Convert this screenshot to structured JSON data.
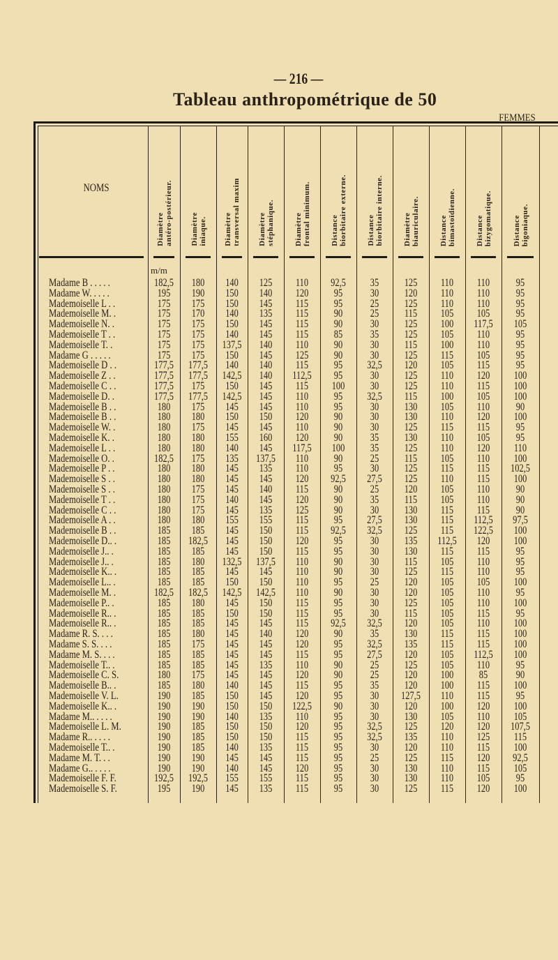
{
  "page_number": "— 216 —",
  "title": "Tableau anthropométrique de 50",
  "subtitle": "FEMMES",
  "table": {
    "name_header": "NOMS",
    "unit": "m/m",
    "columns": [
      [
        "Diamètre",
        "antéro-postérieur."
      ],
      [
        "Diamètre",
        "iniaque."
      ],
      [
        "Diamètre",
        "transversal maxim"
      ],
      [
        "Diamètre",
        "stéphanique."
      ],
      [
        "Diamètre",
        "frontal minimum."
      ],
      [
        "Distance",
        "biorbitaire externe."
      ],
      [
        "Distance",
        "biorbitaire interne."
      ],
      [
        "Diamètre",
        "biauriculaire."
      ],
      [
        "Distance",
        "bimastoïdienne."
      ],
      [
        "Distance",
        "bizygomatique."
      ],
      [
        "Distance",
        "bigoniaque."
      ]
    ],
    "rows": [
      [
        "Madame B . . . . .",
        "182,5",
        "180",
        "140",
        "125",
        "110",
        "92,5",
        "35",
        "125",
        "110",
        "110",
        "95"
      ],
      [
        "Madame W. . . . .",
        "195",
        "190",
        "150",
        "140",
        "120",
        "95",
        "30",
        "120",
        "110",
        "110",
        "95"
      ],
      [
        "Mademoiselle L . .",
        "175",
        "175",
        "150",
        "145",
        "115",
        "95",
        "25",
        "125",
        "110",
        "110",
        "95"
      ],
      [
        "Mademoiselle M. .",
        "175",
        "170",
        "140",
        "135",
        "115",
        "90",
        "25",
        "115",
        "105",
        "105",
        "95"
      ],
      [
        "Mademoiselle N. .",
        "175",
        "175",
        "150",
        "145",
        "115",
        "90",
        "30",
        "125",
        "100",
        "117,5",
        "105"
      ],
      [
        "Mademoiselle T . .",
        "175",
        "175",
        "140",
        "145",
        "115",
        "85",
        "35",
        "125",
        "105",
        "110",
        "95"
      ],
      [
        "Mademoiselle T. .",
        "175",
        "175",
        "137,5",
        "140",
        "110",
        "90",
        "30",
        "115",
        "100",
        "110",
        "95"
      ],
      [
        "Madame G . . . . .",
        "175",
        "175",
        "150",
        "145",
        "125",
        "90",
        "30",
        "125",
        "115",
        "105",
        "95"
      ],
      [
        "Mademoiselle D . .",
        "177,5",
        "177,5",
        "140",
        "140",
        "115",
        "95",
        "32,5",
        "120",
        "105",
        "115",
        "95"
      ],
      [
        "Mademoiselle Z . .",
        "177,5",
        "177,5",
        "142,5",
        "140",
        "112,5",
        "95",
        "30",
        "125",
        "110",
        "120",
        "100"
      ],
      [
        "Mademoiselle C . .",
        "177,5",
        "175",
        "150",
        "145",
        "115",
        "100",
        "30",
        "125",
        "110",
        "115",
        "100"
      ],
      [
        "Mademoiselle D. .",
        "177,5",
        "177,5",
        "142,5",
        "145",
        "110",
        "95",
        "32,5",
        "115",
        "100",
        "105",
        "100"
      ],
      [
        "Mademoiselle B . .",
        "180",
        "175",
        "145",
        "145",
        "110",
        "95",
        "30",
        "130",
        "105",
        "110",
        "90"
      ],
      [
        "Mademoiselle B . .",
        "180",
        "180",
        "150",
        "150",
        "120",
        "90",
        "30",
        "130",
        "110",
        "120",
        "100"
      ],
      [
        "Mademoiselle W. .",
        "180",
        "175",
        "145",
        "145",
        "110",
        "90",
        "30",
        "125",
        "115",
        "115",
        "95"
      ],
      [
        "Mademoiselle K. .",
        "180",
        "180",
        "155",
        "160",
        "120",
        "90",
        "35",
        "130",
        "110",
        "105",
        "95"
      ],
      [
        "Mademoiselle L . .",
        "180",
        "180",
        "140",
        "145",
        "117,5",
        "100",
        "35",
        "125",
        "110",
        "120",
        "110"
      ],
      [
        "Mademoiselle O. .",
        "182,5",
        "175",
        "135",
        "137,5",
        "110",
        "90",
        "25",
        "115",
        "105",
        "110",
        "100"
      ],
      [
        "Mademoiselle P . .",
        "180",
        "180",
        "145",
        "135",
        "110",
        "95",
        "30",
        "125",
        "115",
        "115",
        "102,5"
      ],
      [
        "Mademoiselle S . .",
        "180",
        "180",
        "145",
        "145",
        "120",
        "92,5",
        "27,5",
        "125",
        "110",
        "115",
        "100"
      ],
      [
        "Mademoiselle S . .",
        "180",
        "175",
        "145",
        "140",
        "115",
        "90",
        "25",
        "120",
        "105",
        "110",
        "90"
      ],
      [
        "Mademoiselle T . .",
        "180",
        "175",
        "140",
        "145",
        "120",
        "90",
        "35",
        "115",
        "105",
        "110",
        "90"
      ],
      [
        "Mademoiselle C . .",
        "180",
        "175",
        "145",
        "135",
        "125",
        "90",
        "30",
        "130",
        "115",
        "115",
        "90"
      ],
      [
        "Mademoiselle A . .",
        "180",
        "180",
        "155",
        "155",
        "115",
        "95",
        "27,5",
        "130",
        "115",
        "112,5",
        "97,5"
      ],
      [
        "Mademoiselle B . .",
        "185",
        "185",
        "145",
        "150",
        "115",
        "92,5",
        "32,5",
        "125",
        "115",
        "122,5",
        "100"
      ],
      [
        "Mademoiselle D.. .",
        "185",
        "182,5",
        "145",
        "150",
        "120",
        "95",
        "30",
        "135",
        "112,5",
        "120",
        "100"
      ],
      [
        "Mademoiselle J.. .",
        "185",
        "185",
        "145",
        "150",
        "115",
        "95",
        "30",
        "130",
        "115",
        "115",
        "95"
      ],
      [
        "Mademoiselle J.. .",
        "185",
        "180",
        "132,5",
        "137,5",
        "110",
        "90",
        "30",
        "115",
        "105",
        "110",
        "95"
      ],
      [
        "Mademoiselle K.. .",
        "185",
        "185",
        "145",
        "145",
        "110",
        "90",
        "30",
        "125",
        "115",
        "110",
        "95"
      ],
      [
        "Mademoiselle L.. .",
        "185",
        "185",
        "150",
        "150",
        "110",
        "95",
        "25",
        "120",
        "105",
        "105",
        "100"
      ],
      [
        "Mademoiselle M. .",
        "182,5",
        "182,5",
        "142,5",
        "142,5",
        "110",
        "90",
        "30",
        "120",
        "105",
        "110",
        "95"
      ],
      [
        "Mademoiselle P.. .",
        "185",
        "180",
        "145",
        "150",
        "115",
        "95",
        "30",
        "125",
        "105",
        "110",
        "100"
      ],
      [
        "Mademoiselle R.. .",
        "185",
        "185",
        "150",
        "150",
        "115",
        "95",
        "30",
        "115",
        "105",
        "115",
        "95"
      ],
      [
        "Mademoiselle R.. .",
        "185",
        "185",
        "145",
        "145",
        "115",
        "92,5",
        "32,5",
        "120",
        "105",
        "110",
        "100"
      ],
      [
        "Madame R. S. . . .",
        "185",
        "180",
        "145",
        "140",
        "120",
        "90",
        "35",
        "130",
        "115",
        "115",
        "100"
      ],
      [
        "Madame S. S. . . .",
        "185",
        "175",
        "145",
        "145",
        "120",
        "95",
        "32,5",
        "135",
        "115",
        "115",
        "100"
      ],
      [
        "Madame M. S. . . .",
        "185",
        "185",
        "145",
        "145",
        "115",
        "95",
        "27,5",
        "120",
        "105",
        "112,5",
        "100"
      ],
      [
        "Mademoiselle T.. .",
        "185",
        "185",
        "145",
        "135",
        "110",
        "90",
        "25",
        "125",
        "105",
        "110",
        "95"
      ],
      [
        "Mademoiselle C. S.",
        "180",
        "175",
        "145",
        "145",
        "120",
        "90",
        "25",
        "120",
        "100",
        "85",
        "90"
      ],
      [
        "Mademoiselle B.. .",
        "185",
        "180",
        "140",
        "145",
        "115",
        "95",
        "35",
        "120",
        "100",
        "115",
        "100"
      ],
      [
        "Mademoiselle V. L.",
        "190",
        "185",
        "150",
        "145",
        "120",
        "95",
        "30",
        "127,5",
        "110",
        "115",
        "95"
      ],
      [
        "Mademoiselle K.. .",
        "190",
        "190",
        "150",
        "150",
        "122,5",
        "90",
        "30",
        "120",
        "100",
        "120",
        "100"
      ],
      [
        "Madame M.. . . . .",
        "190",
        "190",
        "140",
        "135",
        "110",
        "95",
        "30",
        "130",
        "105",
        "110",
        "105"
      ],
      [
        "Mademoiselle L. M.",
        "190",
        "185",
        "150",
        "150",
        "120",
        "95",
        "32,5",
        "125",
        "120",
        "120",
        "107,5"
      ],
      [
        "Madame R.. . . . .",
        "190",
        "185",
        "150",
        "150",
        "115",
        "95",
        "32,5",
        "135",
        "110",
        "125",
        "115"
      ],
      [
        "Mademoiselle T.. .",
        "190",
        "185",
        "140",
        "135",
        "115",
        "95",
        "30",
        "120",
        "110",
        "115",
        "100"
      ],
      [
        "Madame M. T. . .",
        "190",
        "190",
        "145",
        "145",
        "115",
        "95",
        "25",
        "125",
        "115",
        "120",
        "92,5"
      ],
      [
        "Madame G.. . . . .",
        "190",
        "190",
        "140",
        "145",
        "120",
        "95",
        "30",
        "130",
        "110",
        "115",
        "105"
      ],
      [
        "Mademoiselle F. F.",
        "192,5",
        "192,5",
        "155",
        "155",
        "115",
        "95",
        "30",
        "130",
        "110",
        "105",
        "95"
      ],
      [
        "Mademoiselle S. F.",
        "195",
        "190",
        "145",
        "135",
        "115",
        "95",
        "30",
        "125",
        "115",
        "120",
        "100"
      ]
    ]
  }
}
